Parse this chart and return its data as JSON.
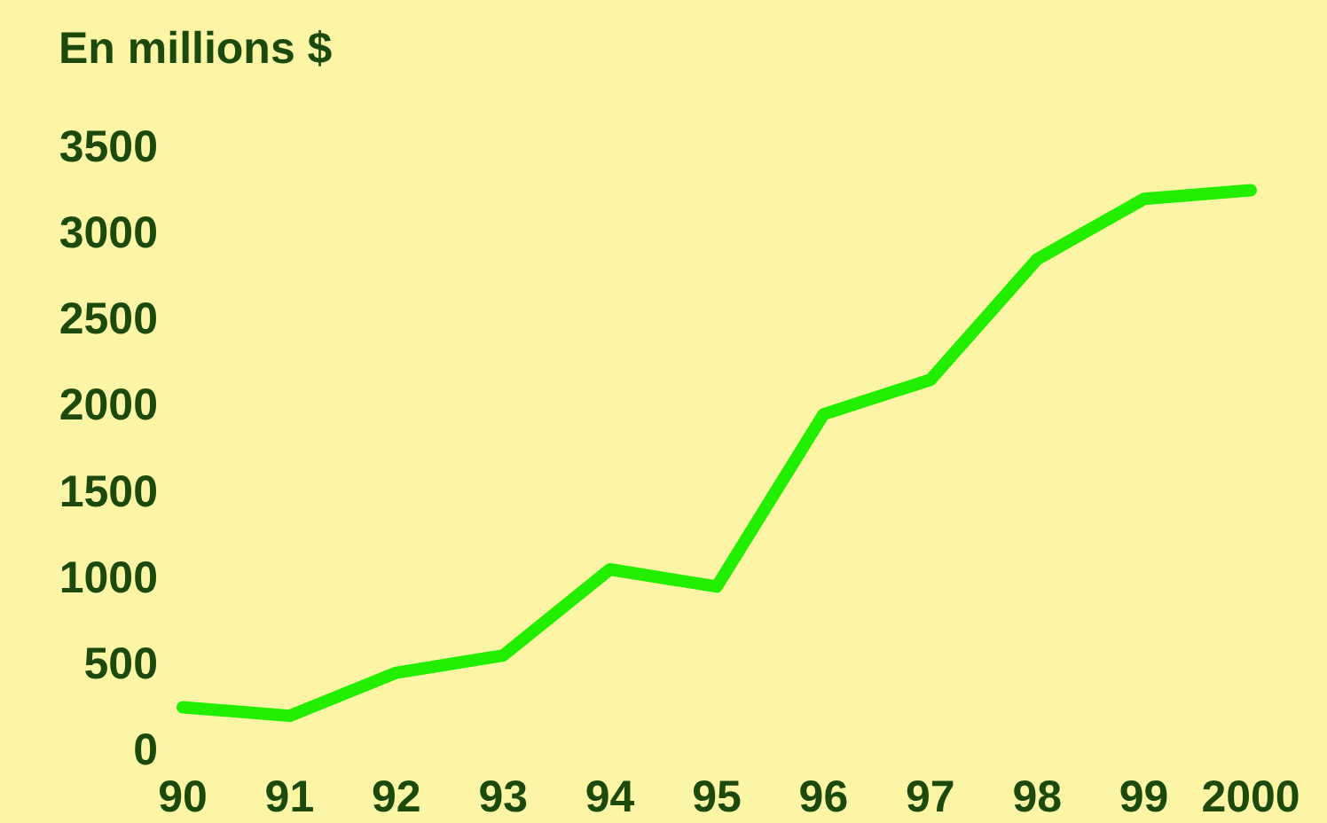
{
  "chart_data": {
    "type": "line",
    "ylabel": "En millions $",
    "categories": [
      "90",
      "91",
      "92",
      "93",
      "94",
      "95",
      "96",
      "97",
      "98",
      "99",
      "2000"
    ],
    "series": [
      {
        "color": "#22ee00",
        "values": [
          250,
          200,
          450,
          550,
          1050,
          950,
          1950,
          2150,
          2850,
          3200,
          3250
        ]
      }
    ],
    "ylim": [
      0,
      3500
    ],
    "yticks": [
      0,
      500,
      1000,
      1500,
      2000,
      2500,
      3000,
      3500
    ],
    "grid": false,
    "line_style": "solid"
  }
}
